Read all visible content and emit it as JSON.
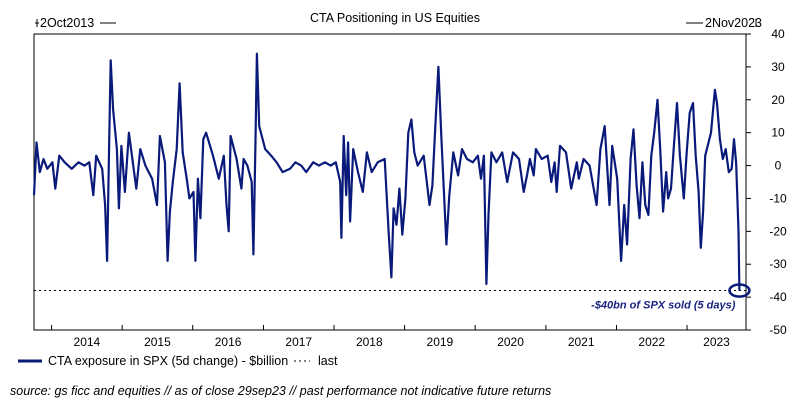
{
  "chart_data": {
    "type": "line",
    "title": "CTA Positioning in US Equities",
    "date_range_left": "2Oct2013",
    "date_range_right": "2Nov2023",
    "xlabel": "",
    "ylabel": "",
    "x_ticks": [
      "2014",
      "2015",
      "2016",
      "2017",
      "2018",
      "2019",
      "2020",
      "2021",
      "2022",
      "2023"
    ],
    "y_ticks": [
      40,
      30,
      20,
      10,
      0,
      -10,
      -20,
      -30,
      -40,
      -50
    ],
    "ylim": [
      -50,
      40
    ],
    "xlim": [
      "2013-10-02",
      "2023-11-02"
    ],
    "y_axis_side": "right",
    "grid": false,
    "legend_placement": "bottom-left",
    "annotation": "-$40bn of SPX sold (5 days)",
    "series": [
      {
        "name": "CTA exposure in SPX (5d change) - $billion",
        "color": "#0a1a7a",
        "points": [
          [
            "2013-10-02",
            -9
          ],
          [
            "2013-10-15",
            7
          ],
          [
            "2013-11-01",
            -2
          ],
          [
            "2013-11-20",
            2
          ],
          [
            "2013-12-10",
            -1
          ],
          [
            "2014-01-05",
            1
          ],
          [
            "2014-01-20",
            -7
          ],
          [
            "2014-02-10",
            3
          ],
          [
            "2014-03-10",
            1
          ],
          [
            "2014-04-15",
            -1
          ],
          [
            "2014-05-20",
            1
          ],
          [
            "2014-06-20",
            0
          ],
          [
            "2014-07-15",
            1
          ],
          [
            "2014-08-05",
            -9
          ],
          [
            "2014-08-20",
            3
          ],
          [
            "2014-09-20",
            -1
          ],
          [
            "2014-10-05",
            -12
          ],
          [
            "2014-10-15",
            -29
          ],
          [
            "2014-10-25",
            4
          ],
          [
            "2014-11-03",
            32
          ],
          [
            "2014-11-15",
            17
          ],
          [
            "2014-12-05",
            5
          ],
          [
            "2014-12-15",
            -13
          ],
          [
            "2014-12-28",
            6
          ],
          [
            "2015-01-15",
            -8
          ],
          [
            "2015-02-05",
            10
          ],
          [
            "2015-02-25",
            1
          ],
          [
            "2015-03-15",
            -7
          ],
          [
            "2015-04-05",
            5
          ],
          [
            "2015-05-01",
            0
          ],
          [
            "2015-06-05",
            -4
          ],
          [
            "2015-06-30",
            -12
          ],
          [
            "2015-07-15",
            9
          ],
          [
            "2015-08-10",
            1
          ],
          [
            "2015-08-24",
            -29
          ],
          [
            "2015-09-05",
            -14
          ],
          [
            "2015-09-20",
            -5
          ],
          [
            "2015-10-10",
            5
          ],
          [
            "2015-10-25",
            25
          ],
          [
            "2015-11-10",
            4
          ],
          [
            "2015-12-01",
            -4
          ],
          [
            "2015-12-15",
            -10
          ],
          [
            "2016-01-05",
            -8
          ],
          [
            "2016-01-15",
            -29
          ],
          [
            "2016-01-28",
            -4
          ],
          [
            "2016-02-10",
            -16
          ],
          [
            "2016-02-25",
            8
          ],
          [
            "2016-03-10",
            10
          ],
          [
            "2016-04-15",
            3
          ],
          [
            "2016-05-15",
            -4
          ],
          [
            "2016-06-10",
            3
          ],
          [
            "2016-06-24",
            -12
          ],
          [
            "2016-07-05",
            -20
          ],
          [
            "2016-07-15",
            9
          ],
          [
            "2016-08-15",
            2
          ],
          [
            "2016-09-09",
            -7
          ],
          [
            "2016-09-20",
            2
          ],
          [
            "2016-10-10",
            0
          ],
          [
            "2016-11-01",
            -5
          ],
          [
            "2016-11-10",
            -27
          ],
          [
            "2016-11-20",
            6
          ],
          [
            "2016-11-28",
            34
          ],
          [
            "2016-12-10",
            12
          ],
          [
            "2017-01-10",
            5
          ],
          [
            "2017-02-10",
            3
          ],
          [
            "2017-03-10",
            1
          ],
          [
            "2017-04-10",
            -2
          ],
          [
            "2017-05-18",
            -1
          ],
          [
            "2017-06-15",
            1
          ],
          [
            "2017-07-15",
            0
          ],
          [
            "2017-08-10",
            -2
          ],
          [
            "2017-09-15",
            1
          ],
          [
            "2017-10-15",
            0
          ],
          [
            "2017-11-15",
            1
          ],
          [
            "2017-12-15",
            0
          ],
          [
            "2018-01-10",
            1
          ],
          [
            "2018-02-02",
            -5
          ],
          [
            "2018-02-08",
            -22
          ],
          [
            "2018-02-20",
            9
          ],
          [
            "2018-03-05",
            -9
          ],
          [
            "2018-03-15",
            7
          ],
          [
            "2018-03-25",
            -17
          ],
          [
            "2018-04-10",
            5
          ],
          [
            "2018-05-05",
            -2
          ],
          [
            "2018-05-30",
            -8
          ],
          [
            "2018-06-20",
            4
          ],
          [
            "2018-07-15",
            -2
          ],
          [
            "2018-08-15",
            1
          ],
          [
            "2018-09-20",
            2
          ],
          [
            "2018-10-10",
            -20
          ],
          [
            "2018-10-25",
            -34
          ],
          [
            "2018-11-05",
            -13
          ],
          [
            "2018-11-20",
            -18
          ],
          [
            "2018-12-05",
            -7
          ],
          [
            "2018-12-20",
            -21
          ],
          [
            "2019-01-05",
            -10
          ],
          [
            "2019-01-20",
            10
          ],
          [
            "2019-02-05",
            14
          ],
          [
            "2019-02-20",
            4
          ],
          [
            "2019-03-10",
            0
          ],
          [
            "2019-04-10",
            3
          ],
          [
            "2019-05-10",
            -12
          ],
          [
            "2019-05-25",
            -6
          ],
          [
            "2019-06-10",
            13
          ],
          [
            "2019-06-25",
            30
          ],
          [
            "2019-07-10",
            9
          ],
          [
            "2019-08-05",
            -24
          ],
          [
            "2019-08-20",
            -9
          ],
          [
            "2019-09-10",
            4
          ],
          [
            "2019-10-05",
            -3
          ],
          [
            "2019-10-25",
            5
          ],
          [
            "2019-11-20",
            2
          ],
          [
            "2019-12-20",
            1
          ],
          [
            "2020-01-15",
            3
          ],
          [
            "2020-01-31",
            -4
          ],
          [
            "2020-02-15",
            3
          ],
          [
            "2020-02-28",
            -36
          ],
          [
            "2020-03-10",
            -15
          ],
          [
            "2020-03-25",
            4
          ],
          [
            "2020-04-20",
            1
          ],
          [
            "2020-05-20",
            4
          ],
          [
            "2020-06-15",
            -5
          ],
          [
            "2020-07-15",
            4
          ],
          [
            "2020-08-15",
            2
          ],
          [
            "2020-09-08",
            -8
          ],
          [
            "2020-09-25",
            -3
          ],
          [
            "2020-10-10",
            2
          ],
          [
            "2020-10-30",
            -3
          ],
          [
            "2020-11-10",
            5
          ],
          [
            "2020-12-10",
            2
          ],
          [
            "2021-01-10",
            3
          ],
          [
            "2021-01-29",
            -5
          ],
          [
            "2021-02-15",
            1
          ],
          [
            "2021-02-26",
            -8
          ],
          [
            "2021-03-15",
            6
          ],
          [
            "2021-04-15",
            4
          ],
          [
            "2021-05-12",
            -7
          ],
          [
            "2021-06-10",
            1
          ],
          [
            "2021-06-20",
            -4
          ],
          [
            "2021-07-15",
            2
          ],
          [
            "2021-08-15",
            0
          ],
          [
            "2021-09-20",
            -12
          ],
          [
            "2021-10-10",
            5
          ],
          [
            "2021-11-01",
            12
          ],
          [
            "2021-11-26",
            -12
          ],
          [
            "2021-12-10",
            6
          ],
          [
            "2022-01-05",
            -4
          ],
          [
            "2022-01-25",
            -29
          ],
          [
            "2022-02-10",
            -12
          ],
          [
            "2022-02-25",
            -24
          ],
          [
            "2022-03-15",
            2
          ],
          [
            "2022-03-30",
            11
          ],
          [
            "2022-04-15",
            -6
          ],
          [
            "2022-04-30",
            -16
          ],
          [
            "2022-05-15",
            1
          ],
          [
            "2022-05-30",
            -12
          ],
          [
            "2022-06-15",
            -15
          ],
          [
            "2022-06-30",
            3
          ],
          [
            "2022-07-15",
            10
          ],
          [
            "2022-08-01",
            20
          ],
          [
            "2022-08-15",
            5
          ],
          [
            "2022-08-30",
            -14
          ],
          [
            "2022-09-15",
            -2
          ],
          [
            "2022-09-25",
            -10
          ],
          [
            "2022-10-10",
            -7
          ],
          [
            "2022-10-25",
            6
          ],
          [
            "2022-11-10",
            19
          ],
          [
            "2022-11-25",
            3
          ],
          [
            "2022-12-15",
            -10
          ],
          [
            "2022-12-30",
            4
          ],
          [
            "2023-01-15",
            16
          ],
          [
            "2023-02-01",
            19
          ],
          [
            "2023-02-15",
            3
          ],
          [
            "2023-03-02",
            -8
          ],
          [
            "2023-03-13",
            -25
          ],
          [
            "2023-03-25",
            -14
          ],
          [
            "2023-04-05",
            3
          ],
          [
            "2023-05-05",
            10
          ],
          [
            "2023-05-25",
            23
          ],
          [
            "2023-06-05",
            19
          ],
          [
            "2023-06-20",
            8
          ],
          [
            "2023-07-05",
            2
          ],
          [
            "2023-07-20",
            5
          ],
          [
            "2023-08-05",
            -2
          ],
          [
            "2023-08-20",
            -1
          ],
          [
            "2023-09-01",
            8
          ],
          [
            "2023-09-12",
            1
          ],
          [
            "2023-09-19",
            -11
          ],
          [
            "2023-09-24",
            -20
          ],
          [
            "2023-09-29",
            -38
          ]
        ]
      },
      {
        "name": "last",
        "style": "dashed",
        "value": -38
      }
    ]
  },
  "legend": {
    "series_label": "CTA exposure in SPX (5d change) - $billion",
    "last_label": "last"
  },
  "footer": {
    "source_note": "source: gs ficc and equities // as of close 29sep23 // past performance not indicative future returns"
  },
  "colors": {
    "line": "#0a1a7a",
    "annotation_text": "#1a237e",
    "axis": "#000000"
  }
}
